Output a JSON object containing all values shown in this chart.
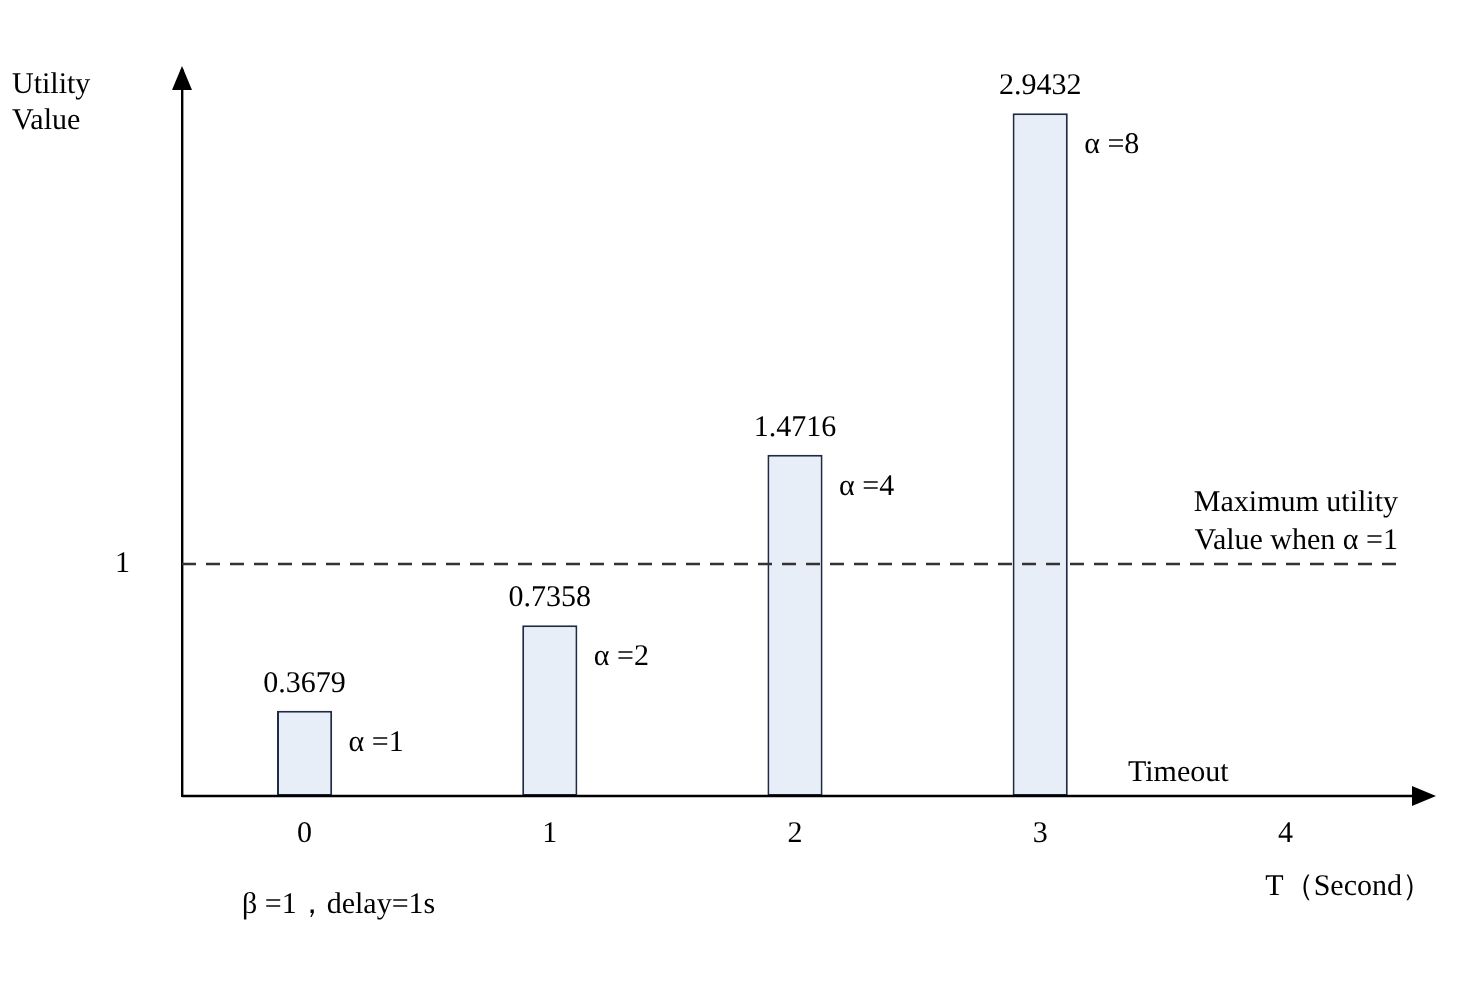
{
  "chart_data": {
    "type": "bar",
    "ylabel": "Utility Value",
    "xlabel": "T（Second）",
    "categories": [
      "0",
      "1",
      "2",
      "3",
      "4"
    ],
    "values": [
      0.3679,
      0.7358,
      1.4716,
      2.9432,
      null
    ],
    "color": "#e8eef8",
    "ylim": [
      0,
      3.13
    ],
    "yticks": [
      1
    ],
    "data_labels": true,
    "grid": false,
    "legend": false,
    "ref_lines": [
      {
        "axis": "y",
        "value": 1,
        "label": "Maximum utility Value when α =1",
        "line_style": "dashed",
        "color": "#333333"
      }
    ],
    "annotations": [
      {
        "text": "α =1",
        "x": "0",
        "y": 0.3679
      },
      {
        "text": "α =2",
        "x": "1",
        "y": 0.7358
      },
      {
        "text": "α =4",
        "x": "2",
        "y": 1.4716
      },
      {
        "text": "α =8",
        "x": "3",
        "y": 2.9432
      },
      "Timeout",
      "β =1，delay=1s"
    ]
  }
}
